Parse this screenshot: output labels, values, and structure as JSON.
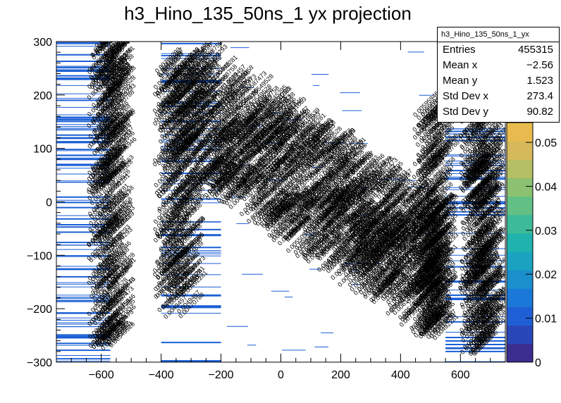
{
  "title": "h3_Hino_135_50ns_1 yx projection",
  "stats_box": {
    "name": "h3_Hino_135_50ns_1_yx",
    "rows": [
      {
        "label": "Entries",
        "value": "455315"
      },
      {
        "label": "Mean x",
        "value": "−2.56"
      },
      {
        "label": "Mean y",
        "value": "1.523"
      },
      {
        "label": "Std Dev x",
        "value": "273.4"
      },
      {
        "label": "Std Dev y",
        "value": "90.82"
      }
    ]
  },
  "colors": {
    "line": "#1a5fd6",
    "text": "#000000",
    "frame": "#000000",
    "palette": [
      "#3a2d8f",
      "#2a47b8",
      "#1f5fd6",
      "#1a78d8",
      "#1a8fcc",
      "#1aa3c0",
      "#20b2ad",
      "#3dbb98",
      "#62c084",
      "#8bc171",
      "#b4be64",
      "#d6b95a",
      "#e9bb4f"
    ]
  },
  "chart_data": {
    "type": "heatmap",
    "title": "h3_Hino_135_50ns_1 yx projection",
    "xlabel": "",
    "ylabel": "",
    "xlim": [
      -750,
      750
    ],
    "ylim": [
      -300,
      300
    ],
    "x_ticks": [
      -600,
      -400,
      -200,
      0,
      200,
      400,
      600
    ],
    "y_ticks": [
      -300,
      -200,
      -100,
      0,
      100,
      200,
      300
    ],
    "z_ticks": [
      0,
      0.01,
      0.02,
      0.03,
      0.04,
      0.05
    ],
    "zlim": [
      0,
      0.06
    ],
    "grid": false,
    "legend": "top-right stats box",
    "bin_labels": [
      "0.00492281",
      "0.00545295",
      "0.00531663",
      "0.00587473",
      "0.00668758",
      "0.00614639",
      "0.0049457",
      "0.00470788",
      "0.0053358",
      "0.00799293",
      "0.00595946",
      "0.00550946",
      "0.0049467",
      "0.00549528"
    ],
    "regions": [
      {
        "x": [
          -750,
          -570
        ],
        "y": [
          -300,
          300
        ],
        "density": 0.7
      },
      {
        "x": [
          -400,
          -200
        ],
        "y": [
          -300,
          300
        ],
        "density": 0.35
      },
      {
        "x": [
          550,
          750
        ],
        "y": [
          -300,
          300
        ],
        "density": 0.55
      }
    ]
  }
}
